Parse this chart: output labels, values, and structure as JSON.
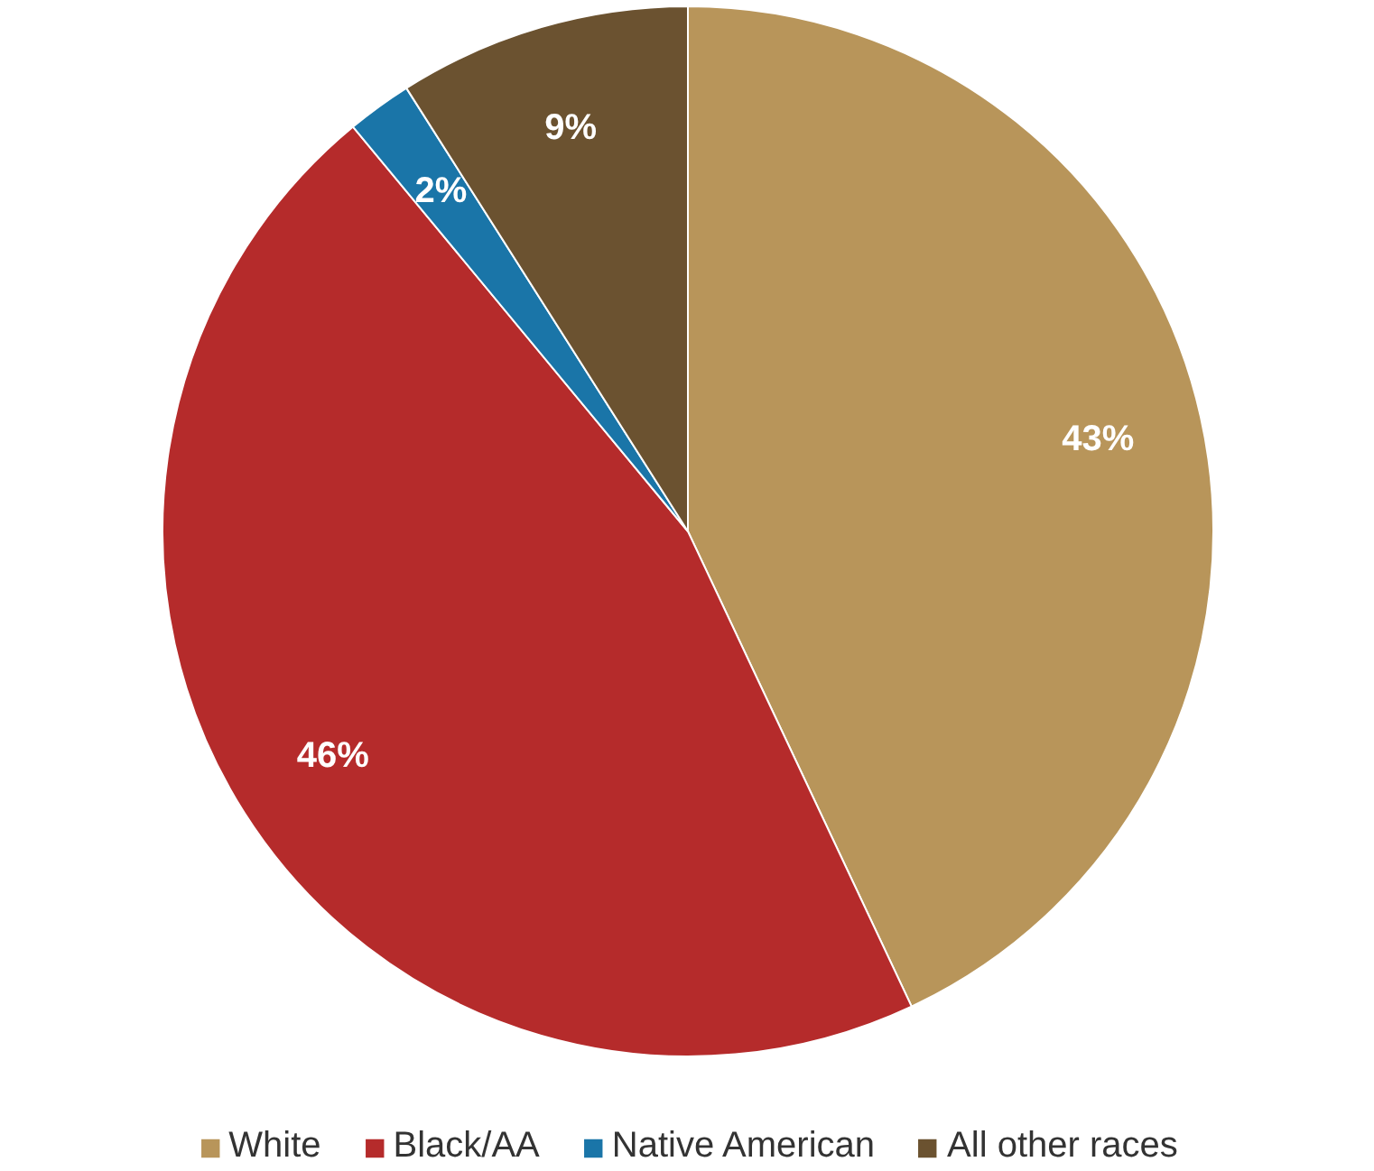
{
  "chart_data": {
    "type": "pie",
    "categories": [
      "White",
      "Black/AA",
      "Native American",
      "All other races"
    ],
    "values": [
      43,
      46,
      2,
      9
    ],
    "colors": [
      "#b8955a",
      "#b52b2b",
      "#1a75a8",
      "#6b5230"
    ],
    "value_labels": [
      "43%",
      "46%",
      "2%",
      "9%"
    ],
    "legend": "bottom"
  }
}
